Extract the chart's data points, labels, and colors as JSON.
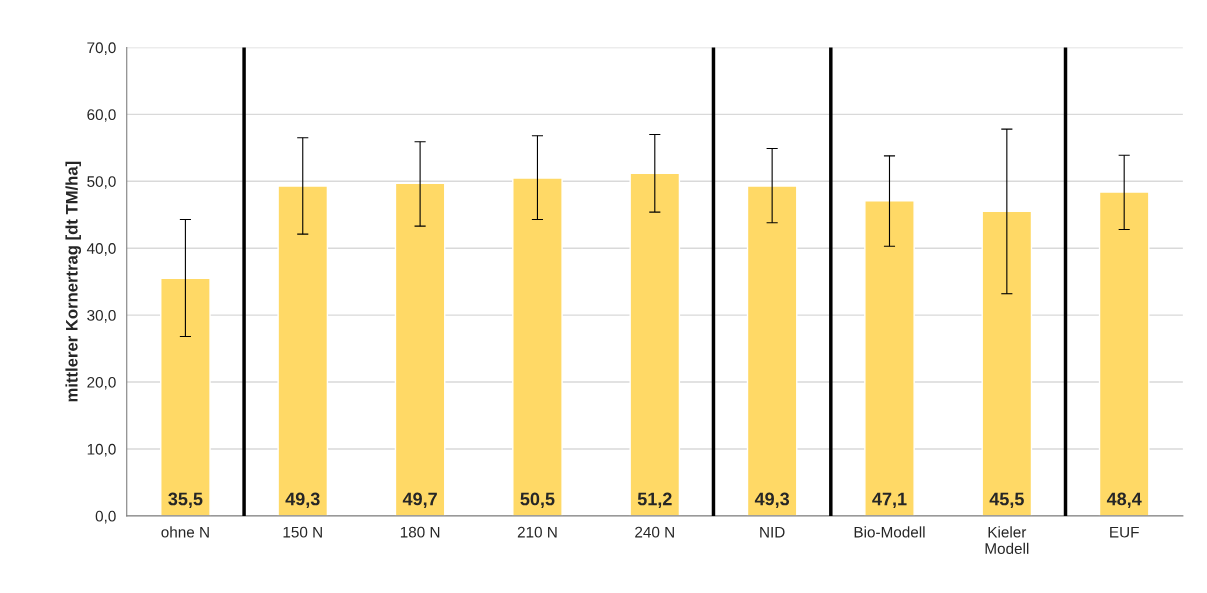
{
  "chart_data": {
    "type": "bar",
    "ylabel": "mittlerer Kornertrag [dt TM/ha]",
    "categories": [
      "ohne N",
      "150 N",
      "180 N",
      "210 N",
      "240 N",
      "NID",
      "Bio-Modell",
      "Kieler\nModell",
      "EUF"
    ],
    "values": [
      35.5,
      49.3,
      49.7,
      50.5,
      51.2,
      49.3,
      47.1,
      45.5,
      48.4
    ],
    "value_labels": [
      "35,5",
      "49,3",
      "49,7",
      "50,5",
      "51,2",
      "49,3",
      "47,1",
      "45,5",
      "48,4"
    ],
    "errors": [
      [
        26.8,
        44.3
      ],
      [
        42.1,
        56.5
      ],
      [
        43.3,
        55.9
      ],
      [
        44.3,
        56.8
      ],
      [
        45.4,
        57.0
      ],
      [
        43.8,
        54.9
      ],
      [
        40.3,
        53.8
      ],
      [
        33.2,
        57.8
      ],
      [
        42.8,
        53.9
      ]
    ],
    "color": "#ffd966",
    "ylim": [
      0,
      70
    ],
    "yticks": [
      {
        "value": 0,
        "label": "0,0"
      },
      {
        "value": 10,
        "label": "10,0"
      },
      {
        "value": 20,
        "label": "20,0"
      },
      {
        "value": 30,
        "label": "30,0"
      },
      {
        "value": 40,
        "label": "40,0"
      },
      {
        "value": 50,
        "label": "50,0"
      },
      {
        "value": 60,
        "label": "60,0"
      },
      {
        "value": 70,
        "label": "70,0"
      }
    ],
    "grid": "y"
  }
}
